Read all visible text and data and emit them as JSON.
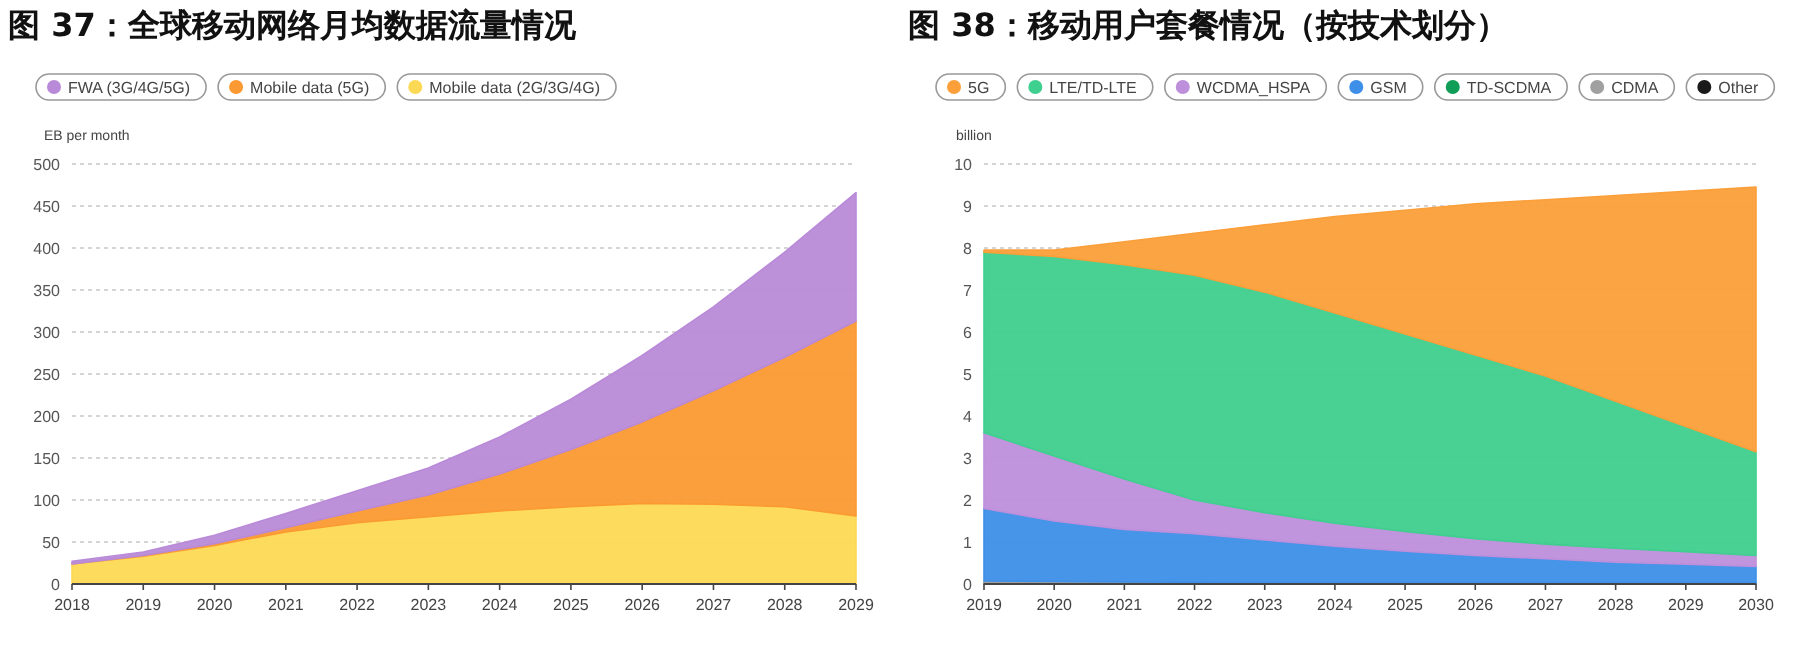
{
  "chart_data": [
    {
      "type": "area",
      "title": "图 37：全球移动网络月均数据流量情况",
      "ylabel": "EB per month",
      "stacked": true,
      "grid": "y",
      "legend": "top left",
      "categories": [
        "2018",
        "2019",
        "2020",
        "2021",
        "2022",
        "2023",
        "2024",
        "2025",
        "2026",
        "2027",
        "2028",
        "2029"
      ],
      "ylim": [
        0,
        500
      ],
      "yticks": [
        0,
        50,
        100,
        150,
        200,
        250,
        300,
        350,
        400,
        450,
        500
      ],
      "series": [
        {
          "name": "Mobile data (2G/3G/4G)",
          "color": "#fcd954",
          "values": [
            24,
            33,
            46,
            62,
            73,
            80,
            87,
            92,
            96,
            95,
            92,
            81
          ]
        },
        {
          "name": "Mobile data (5G)",
          "color": "#fb9a33",
          "values": [
            0,
            1,
            2,
            5,
            14,
            26,
            44,
            68,
            97,
            135,
            178,
            232
          ]
        },
        {
          "name": "FWA (3G/4G/5G)",
          "color": "#b98ad8",
          "values": [
            3,
            4,
            10,
            17,
            24,
            32,
            44,
            60,
            79,
            100,
            125,
            153
          ]
        }
      ]
    },
    {
      "type": "area",
      "title": "图 38：移动用户套餐情况（按技术划分）",
      "ylabel": "billion",
      "stacked": true,
      "grid": "y",
      "legend": "top left",
      "categories": [
        "2019",
        "2020",
        "2021",
        "2022",
        "2023",
        "2024",
        "2025",
        "2026",
        "2027",
        "2028",
        "2029",
        "2030"
      ],
      "ylim": [
        0,
        10
      ],
      "yticks": [
        0,
        1,
        2,
        3,
        4,
        5,
        6,
        7,
        8,
        9,
        10
      ],
      "series": [
        {
          "name": "Other",
          "color": "#1a1a1a",
          "values": [
            0.02,
            0.02,
            0.02,
            0.02,
            0.02,
            0.02,
            0.02,
            0.02,
            0.02,
            0.02,
            0.02,
            0.02
          ]
        },
        {
          "name": "CDMA",
          "color": "#a0a0a0",
          "values": [
            0.05,
            0.04,
            0.03,
            0.02,
            0.01,
            0,
            0,
            0,
            0,
            0,
            0,
            0
          ]
        },
        {
          "name": "TD-SCDMA",
          "color": "#0f9d58",
          "values": [
            null,
            null,
            null,
            null,
            null,
            null,
            null,
            null,
            null,
            null,
            null,
            null
          ]
        },
        {
          "name": "GSM",
          "color": "#3d8fe8",
          "values": [
            1.73,
            1.44,
            1.25,
            1.16,
            1.02,
            0.88,
            0.76,
            0.66,
            0.58,
            0.5,
            0.45,
            0.4
          ]
        },
        {
          "name": "WCDMA_HSPA",
          "color": "#be8fdb",
          "values": [
            1.8,
            1.55,
            1.2,
            0.8,
            0.65,
            0.55,
            0.47,
            0.4,
            0.35,
            0.33,
            0.3,
            0.26
          ]
        },
        {
          "name": "LTE/TD-LTE",
          "color": "#3fcf8e",
          "values": [
            4.3,
            4.75,
            5.1,
            5.35,
            5.25,
            5.0,
            4.7,
            4.37,
            4.0,
            3.5,
            2.98,
            2.47
          ]
        },
        {
          "name": "5G",
          "color": "#fb9f3a",
          "values": [
            0.05,
            0.15,
            0.55,
            1.0,
            1.6,
            2.3,
            2.95,
            3.6,
            4.2,
            4.9,
            5.6,
            6.3
          ]
        }
      ]
    }
  ]
}
